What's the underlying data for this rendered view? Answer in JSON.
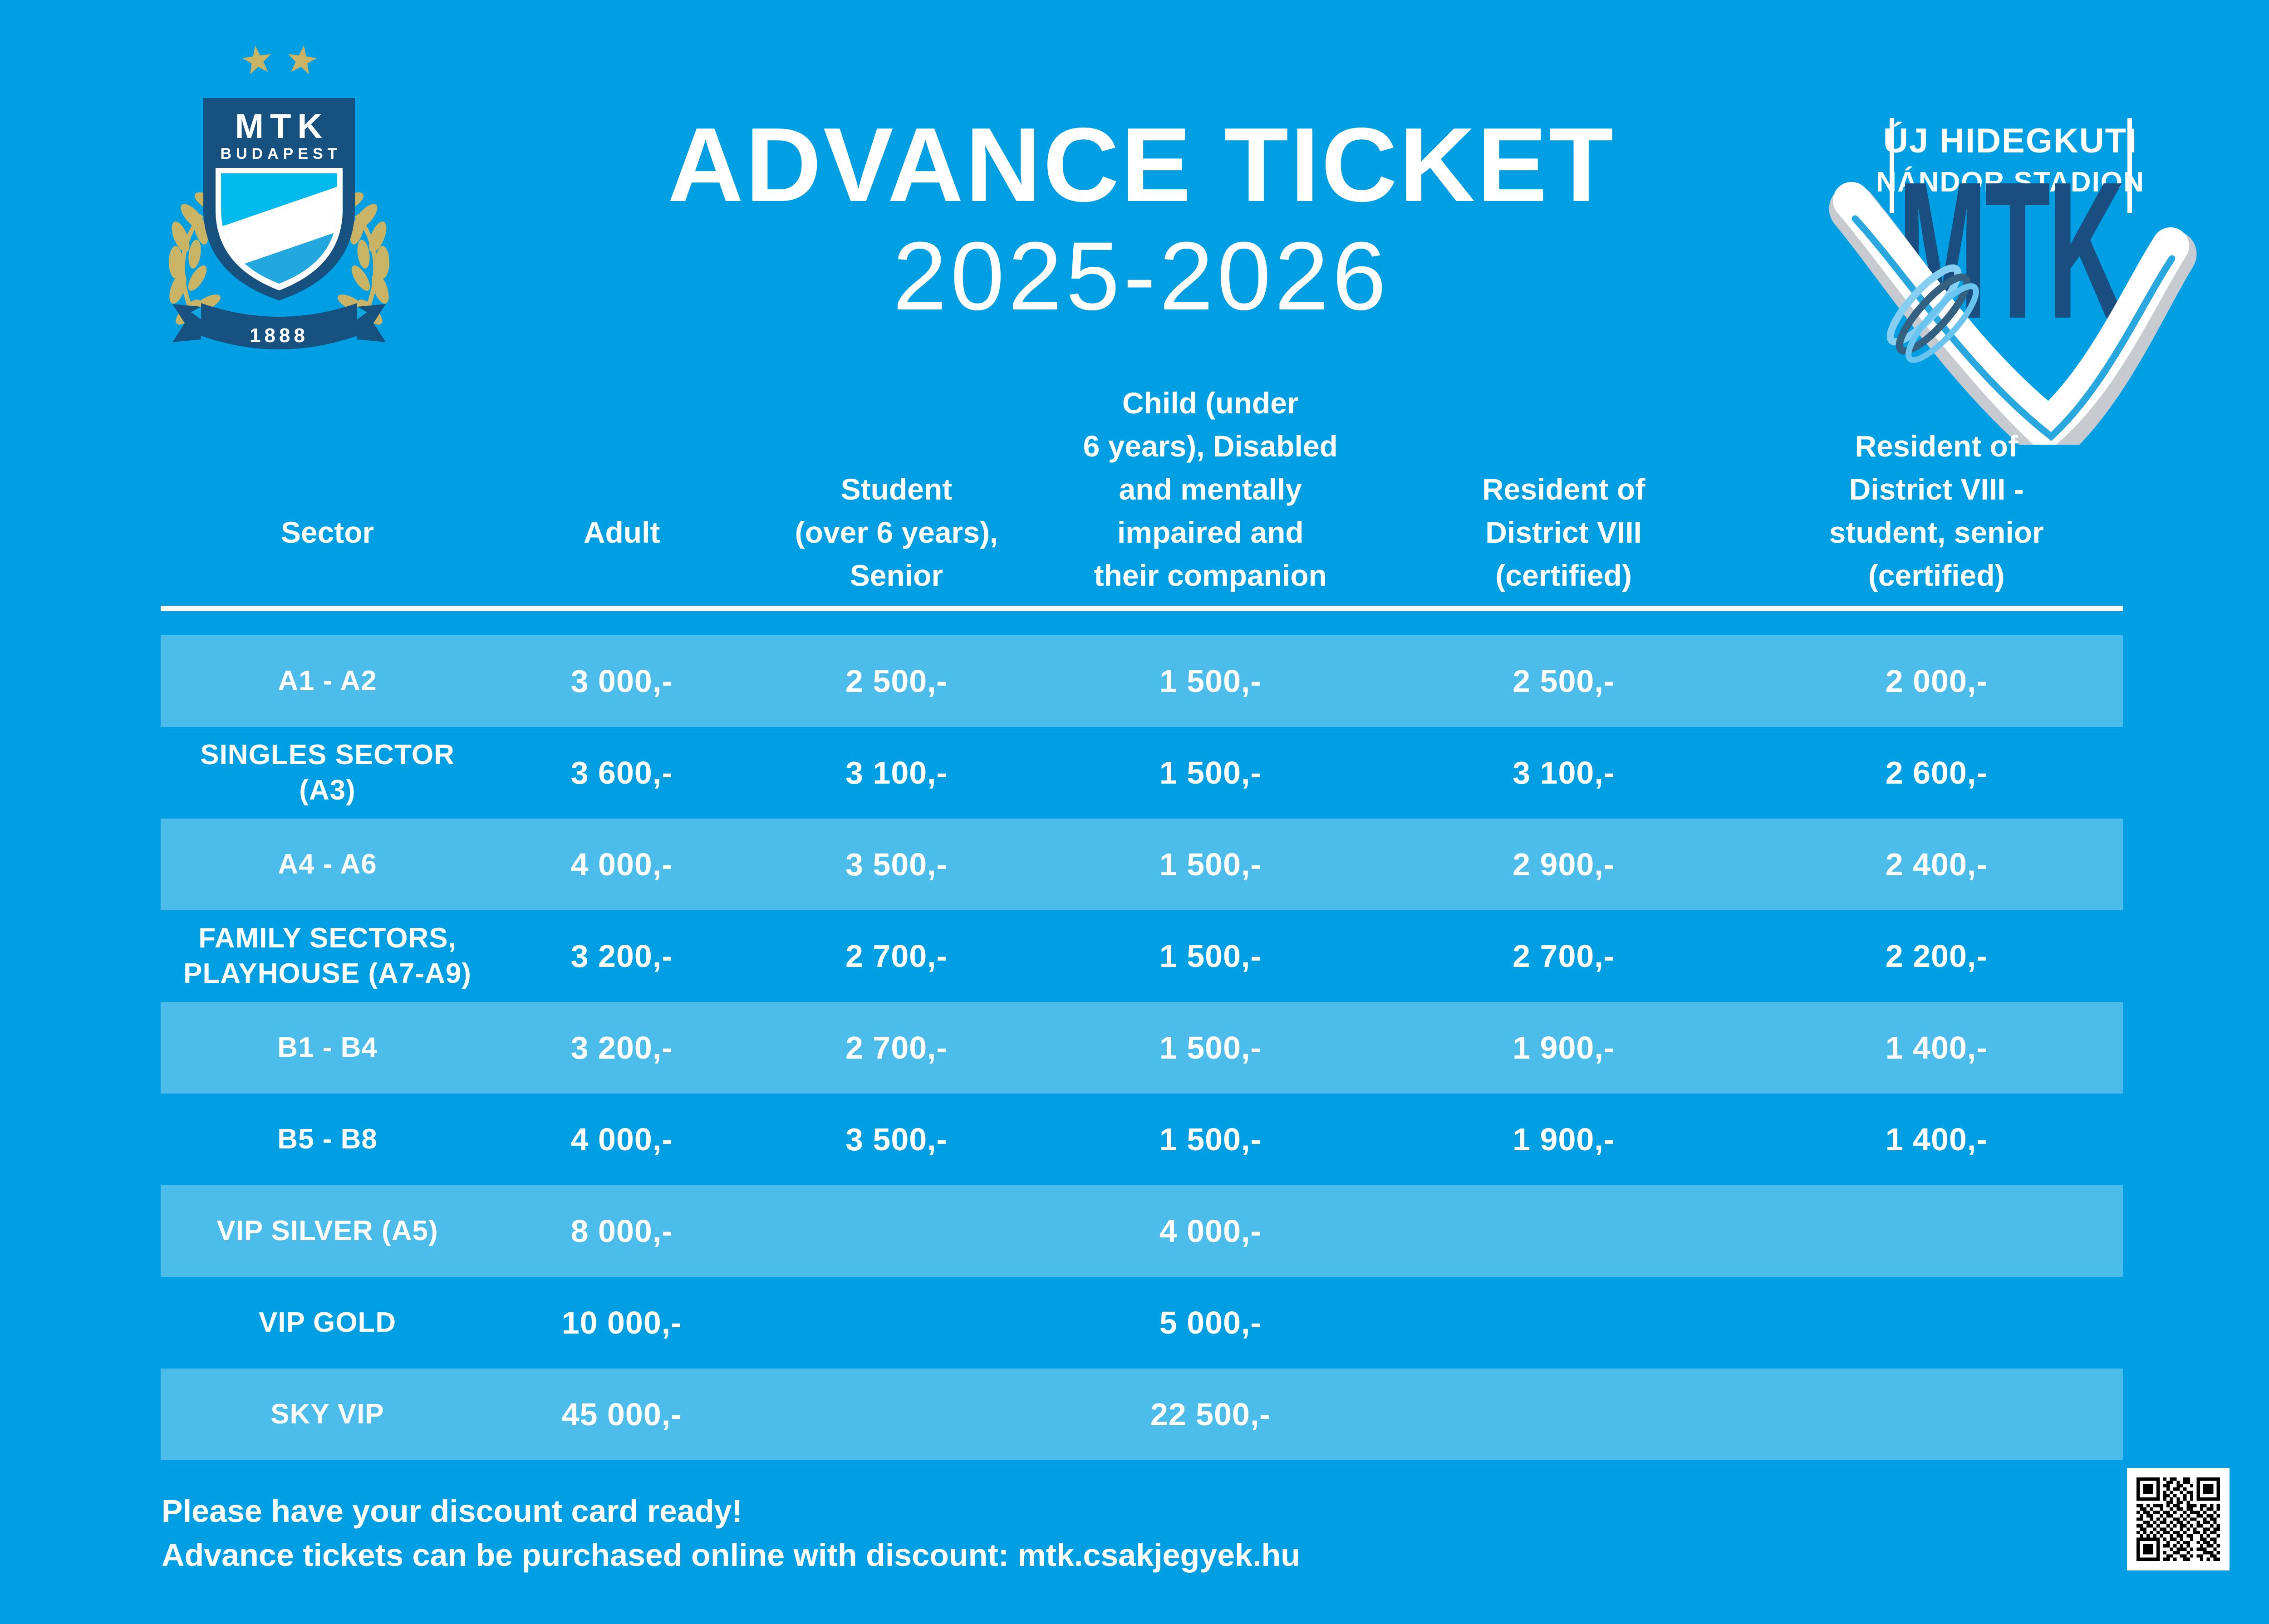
{
  "header": {
    "title": "ADVANCE TICKET",
    "season": "2025-2026",
    "crest": {
      "club": "MTK",
      "city": "BUDAPEST",
      "founded": "1888"
    },
    "stadium": {
      "line1": "ÚJ HIDEGKUTI",
      "line2": "NÁNDOR STADION",
      "wordmark": "MTK"
    }
  },
  "table": {
    "columns": [
      "Sector",
      "Adult",
      "Student\n(over 6 years),\nSenior",
      "Child (under\n6 years), Disabled\nand mentally\nimpaired and\ntheir companion",
      "Resident of\nDistrict VIII\n(certified)",
      "Resident of\nDistrict VIII -\nstudent, senior\n(certified)"
    ],
    "rows": [
      {
        "sector": "A1 - A2",
        "prices": [
          "3 000,-",
          "2 500,-",
          "1 500,-",
          "2 500,-",
          "2 000,-"
        ]
      },
      {
        "sector": "SINGLES SECTOR\n(A3)",
        "prices": [
          "3 600,-",
          "3 100,-",
          "1 500,-",
          "3 100,-",
          "2 600,-"
        ]
      },
      {
        "sector": "A4 - A6",
        "prices": [
          "4 000,-",
          "3 500,-",
          "1 500,-",
          "2 900,-",
          "2 400,-"
        ]
      },
      {
        "sector": "FAMILY SECTORS,\nPLAYHOUSE (A7-A9)",
        "prices": [
          "3 200,-",
          "2 700,-",
          "1 500,-",
          "2 700,-",
          "2 200,-"
        ]
      },
      {
        "sector": "B1 - B4",
        "prices": [
          "3 200,-",
          "2 700,-",
          "1 500,-",
          "1 900,-",
          "1 400,-"
        ]
      },
      {
        "sector": "B5 - B8",
        "prices": [
          "4 000,-",
          "3 500,-",
          "1 500,-",
          "1 900,-",
          "1 400,-"
        ]
      },
      {
        "sector": "VIP SILVER (A5)",
        "prices": [
          "8 000,-",
          "",
          "4 000,-",
          "",
          ""
        ]
      },
      {
        "sector": "VIP GOLD",
        "prices": [
          "10 000,-",
          "",
          "5 000,-",
          "",
          ""
        ]
      },
      {
        "sector": "SKY VIP",
        "prices": [
          "45 000,-",
          "",
          "22 500,-",
          "",
          ""
        ]
      }
    ]
  },
  "footer": {
    "line1": "Please have your discount card ready!",
    "line2": "Advance tickets can be purchased online with discount: mtk.csakjegyek.hu"
  },
  "qr": {
    "pattern": [
      "1111111010110011001111111",
      "1000001001101011001000001",
      "1011101011001100101011101",
      "1011101001011010001011101",
      "1011101010100101101011101",
      "1000001011010010101000001",
      "1111111010101010101111111",
      "0000000001101101000000000",
      "1101011101011001110110101",
      "0110100100101101100101101",
      "1011011011010010111010010",
      "0101100101100101001101101",
      "1100101010011010110010110",
      "0011010110101101001011010",
      "1101101001010110101100101",
      "0110010110100101010011011",
      "1010101011011010011010110",
      "0101010100101101100101001",
      "1111111010110100100110110",
      "1000001001001011001011010",
      "1011101011010101000101101",
      "1011101000101110101110010",
      "1011101010011001000011101",
      "1000001001100110101100110",
      "1111111011010011000101011"
    ]
  },
  "colors": {
    "background": "#009FE3",
    "row_band": "#4CBCEB",
    "navy": "#16517F",
    "stadium_navy": "#1B4E80",
    "gold": "#C9B465",
    "shield_cyan": "#00B9ED",
    "shield_cyan_dark": "#22A8DF",
    "swoosh_grey": "#C7CBD0",
    "white": "#FFFFFF"
  }
}
